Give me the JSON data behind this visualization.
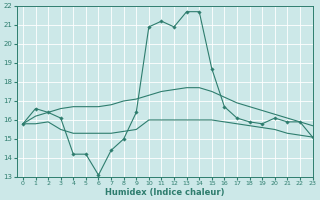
{
  "x": [
    0,
    1,
    2,
    3,
    4,
    5,
    6,
    7,
    8,
    9,
    10,
    11,
    12,
    13,
    14,
    15,
    16,
    17,
    18,
    19,
    20,
    21,
    22,
    23
  ],
  "line1": [
    15.8,
    16.6,
    16.4,
    16.1,
    14.2,
    14.2,
    13.1,
    14.4,
    15.0,
    16.4,
    20.9,
    21.2,
    20.9,
    21.7,
    21.7,
    18.7,
    16.7,
    16.1,
    15.9,
    15.8,
    16.1,
    15.9,
    15.9,
    15.1
  ],
  "line2": [
    15.8,
    15.8,
    15.9,
    15.5,
    15.3,
    15.3,
    15.3,
    15.3,
    15.4,
    15.5,
    16.0,
    16.0,
    16.0,
    16.0,
    16.0,
    16.0,
    15.9,
    15.8,
    15.7,
    15.6,
    15.5,
    15.3,
    15.2,
    15.1
  ],
  "line3": [
    15.8,
    16.2,
    16.4,
    16.6,
    16.7,
    16.7,
    16.7,
    16.8,
    17.0,
    17.1,
    17.3,
    17.5,
    17.6,
    17.7,
    17.7,
    17.5,
    17.2,
    16.9,
    16.7,
    16.5,
    16.3,
    16.1,
    15.9,
    15.7
  ],
  "color": "#2e7d6e",
  "bg_color": "#cce8e8",
  "grid_color": "#aad4d4",
  "xlabel": "Humidex (Indice chaleur)",
  "ylim": [
    13,
    22
  ],
  "xlim": [
    -0.5,
    23
  ],
  "yticks": [
    13,
    14,
    15,
    16,
    17,
    18,
    19,
    20,
    21,
    22
  ],
  "xticks": [
    0,
    1,
    2,
    3,
    4,
    5,
    6,
    7,
    8,
    9,
    10,
    11,
    12,
    13,
    14,
    15,
    16,
    17,
    18,
    19,
    20,
    21,
    22,
    23
  ]
}
